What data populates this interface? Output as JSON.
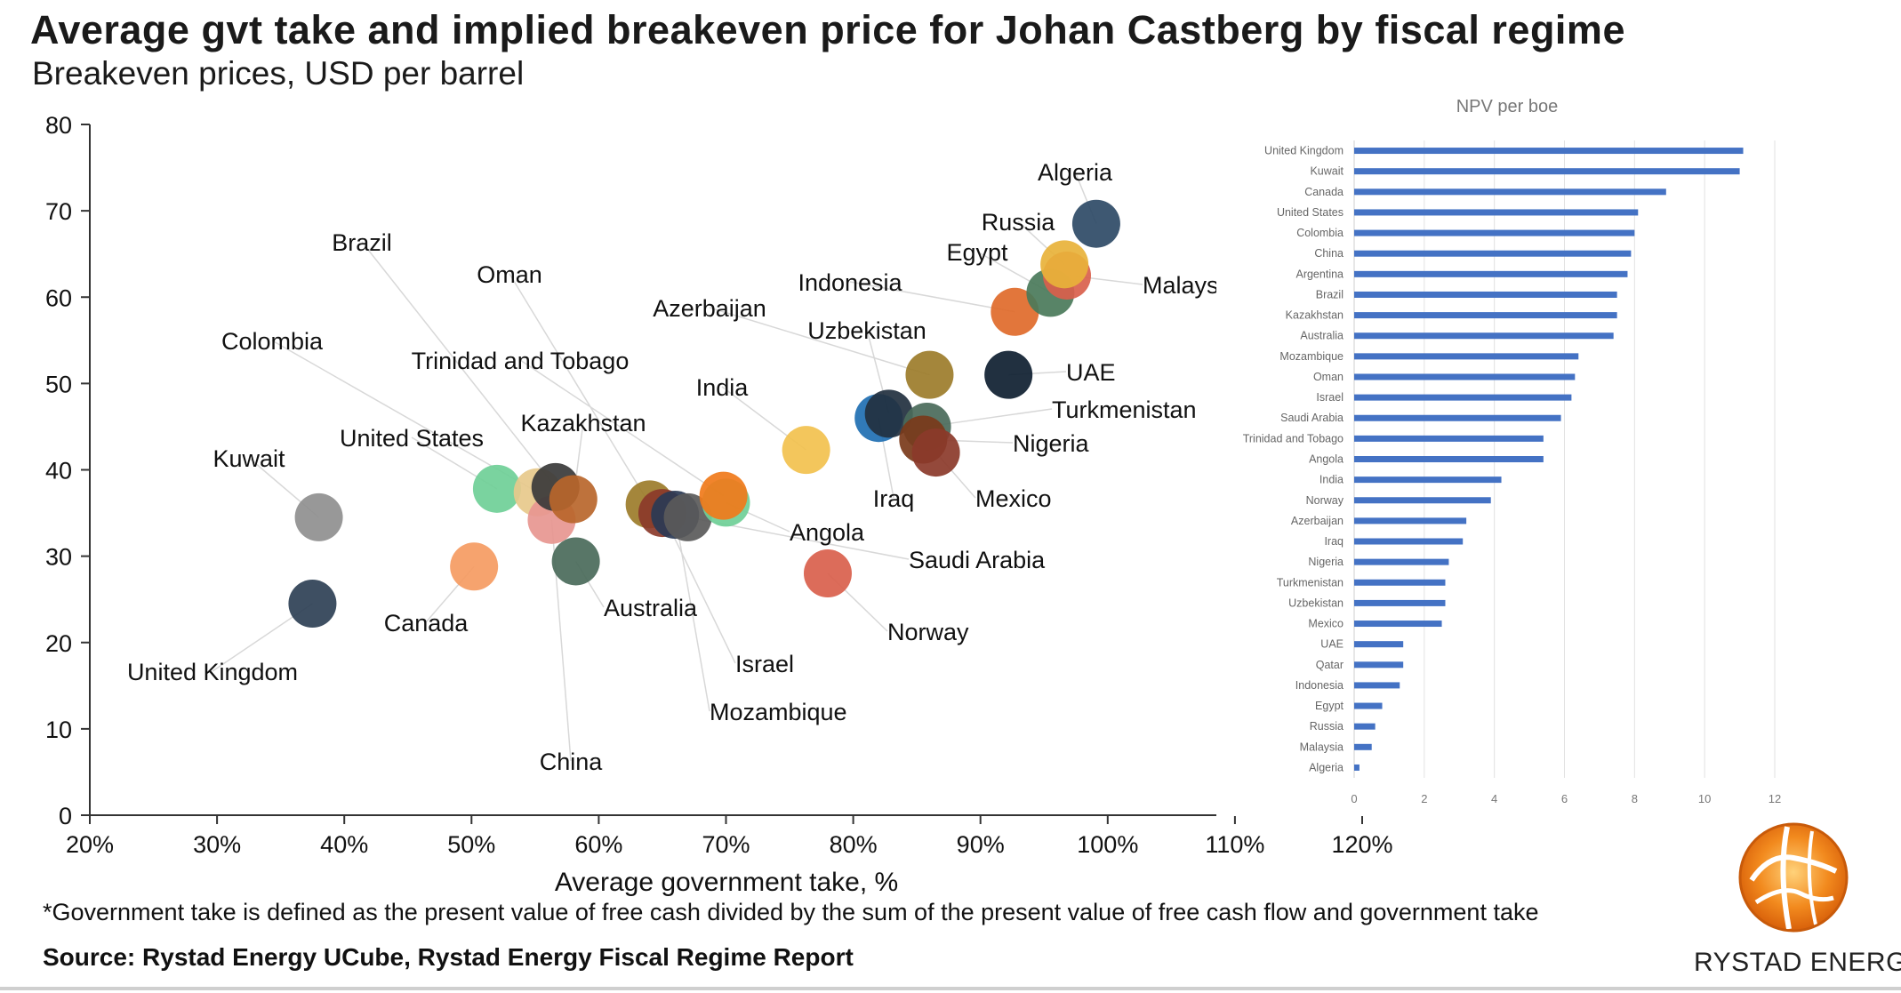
{
  "title": "Average gvt take and implied breakeven price for Johan Castberg by fiscal regime",
  "subtitle": "Breakeven prices, USD per barrel",
  "footnote": "*Government take is defined as the present value of free cash divided by the sum of the present value of free cash flow and government take",
  "source": "Source: Rystad Energy UCube, Rystad Energy Fiscal Regime Report",
  "logo_text": "RYSTAD ENERGY",
  "chart_data": [
    {
      "type": "scatter",
      "title": "",
      "xlabel": "Average government take, %",
      "ylabel": "",
      "xlim": [
        20,
        120
      ],
      "ylim": [
        0,
        80
      ],
      "xticks": [
        "20%",
        "30%",
        "40%",
        "50%",
        "60%",
        "70%",
        "80%",
        "90%",
        "100%",
        "110%",
        "120%"
      ],
      "yticks": [
        "0",
        "10",
        "20",
        "30",
        "40",
        "50",
        "60",
        "70",
        "80"
      ],
      "points": [
        {
          "name": "United Kingdom",
          "x": 37.5,
          "y": 24.5,
          "color": "#2e4055"
        },
        {
          "name": "Kuwait",
          "x": 38,
          "y": 34.5,
          "color": "#8f8f8f"
        },
        {
          "name": "Canada",
          "x": 50.2,
          "y": 28.8,
          "color": "#f59b62"
        },
        {
          "name": "United States",
          "x": 52,
          "y": 37.8,
          "color": "#6fcf97"
        },
        {
          "name": "Colombia",
          "x": 55.2,
          "y": 37.4,
          "color": "#e7c98b"
        },
        {
          "name": "China",
          "x": 56.3,
          "y": 34.2,
          "color": "#e79690"
        },
        {
          "name": "Brazil",
          "x": 56.6,
          "y": 38,
          "color": "#3a3a3a"
        },
        {
          "name": "Kazakhstan",
          "x": 58,
          "y": 36.6,
          "color": "#b8662b"
        },
        {
          "name": "Australia",
          "x": 58.2,
          "y": 29.4,
          "color": "#4a6a5a"
        },
        {
          "name": "Oman",
          "x": 64,
          "y": 36,
          "color": "#9c7c2a"
        },
        {
          "name": "Israel",
          "x": 65,
          "y": 35,
          "color": "#8b3a2a"
        },
        {
          "name": "Mozambique",
          "x": 66,
          "y": 34.8,
          "color": "#2a3a55"
        },
        {
          "name": "Saudi Arabia",
          "x": 67,
          "y": 34.5,
          "color": "#5a5a5a"
        },
        {
          "name": "Angola",
          "x": 70,
          "y": 36.2,
          "color": "#6fcf97"
        },
        {
          "name": "Trinidad and Tobago",
          "x": 69.8,
          "y": 37,
          "color": "#f07a1a"
        },
        {
          "name": "India",
          "x": 76.3,
          "y": 42.3,
          "color": "#f2c14e"
        },
        {
          "name": "Norway",
          "x": 78,
          "y": 28,
          "color": "#d9604c"
        },
        {
          "name": "Iraq",
          "x": 82,
          "y": 46,
          "color": "#1f6fb2"
        },
        {
          "name": "Uzbekistan",
          "x": 82.8,
          "y": 46.5,
          "color": "#22303f"
        },
        {
          "name": "Turkmenistan",
          "x": 85.8,
          "y": 45,
          "color": "#4a6a5a"
        },
        {
          "name": "Nigeria",
          "x": 85.5,
          "y": 43.5,
          "color": "#7a3a1a"
        },
        {
          "name": "Mexico",
          "x": 86.5,
          "y": 42,
          "color": "#8b3a2a"
        },
        {
          "name": "Azerbaijan",
          "x": 86,
          "y": 51,
          "color": "#9c7c2a"
        },
        {
          "name": "UAE",
          "x": 92.2,
          "y": 51,
          "color": "#0e1e30"
        },
        {
          "name": "Indonesia",
          "x": 92.7,
          "y": 58.3,
          "color": "#e06a2a"
        },
        {
          "name": "Egypt",
          "x": 95.5,
          "y": 60.5,
          "color": "#4a7a5a"
        },
        {
          "name": "Malaysia",
          "x": 96.8,
          "y": 62.5,
          "color": "#d9604c"
        },
        {
          "name": "Russia",
          "x": 96.6,
          "y": 63.8,
          "color": "#e8b23a"
        },
        {
          "name": "Algeria",
          "x": 99.1,
          "y": 68.5,
          "color": "#2e4a66"
        }
      ],
      "labels": [
        "Algeria",
        "Russia",
        "Malays",
        "Egypt",
        "Indonesia",
        "UAE",
        "Azerbaijan",
        "Uzbekistan",
        "Turkmenistan",
        "Nigeria",
        "Mexico",
        "Iraq",
        "India",
        "Norway",
        "Saudi Arabia",
        "Angola",
        "Israel",
        "Mozambique",
        "Australia",
        "China",
        "Canada",
        "United Kingdom",
        "Kuwait",
        "United States",
        "Colombia",
        "Brazil",
        "Oman",
        "Trinidad and Tobago",
        "Kazakhstan"
      ]
    },
    {
      "type": "bar",
      "orientation": "horizontal",
      "title": "NPV per boe",
      "categories": [
        "United Kingdom",
        "Kuwait",
        "Canada",
        "United States",
        "Colombia",
        "China",
        "Argentina",
        "Brazil",
        "Kazakhstan",
        "Australia",
        "Mozambique",
        "Oman",
        "Israel",
        "Saudi Arabia",
        "Trinidad and Tobago",
        "Angola",
        "India",
        "Norway",
        "Azerbaijan",
        "Iraq",
        "Nigeria",
        "Turkmenistan",
        "Uzbekistan",
        "Mexico",
        "UAE",
        "Qatar",
        "Indonesia",
        "Egypt",
        "Russia",
        "Malaysia",
        "Algeria"
      ],
      "values": [
        11.1,
        11.0,
        8.9,
        8.1,
        8.0,
        7.9,
        7.8,
        7.5,
        7.5,
        7.4,
        6.4,
        6.3,
        6.2,
        5.9,
        5.4,
        5.4,
        4.2,
        3.9,
        3.2,
        3.1,
        2.7,
        2.6,
        2.6,
        2.5,
        1.4,
        1.4,
        1.3,
        0.8,
        0.6,
        0.5,
        0.15
      ],
      "color": "#4472c4",
      "xlim": [
        0,
        12
      ],
      "xticks": [
        "0",
        "2",
        "4",
        "6",
        "8",
        "10",
        "12"
      ],
      "grid": true
    }
  ]
}
